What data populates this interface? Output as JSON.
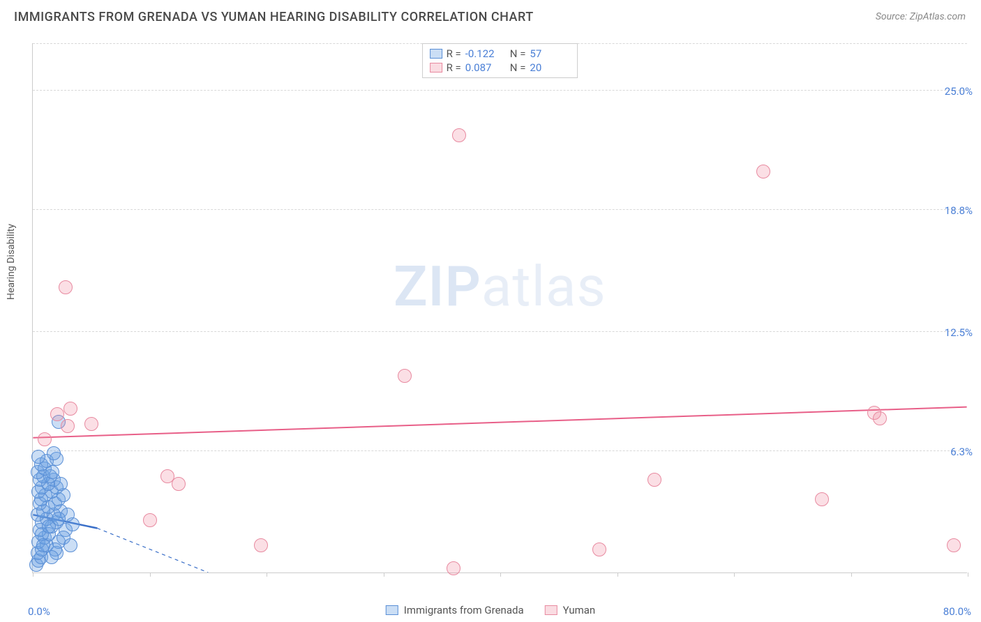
{
  "title": "IMMIGRANTS FROM GRENADA VS YUMAN HEARING DISABILITY CORRELATION CHART",
  "source": "Source: ZipAtlas.com",
  "ylabel": "Hearing Disability",
  "watermark_part1": "ZIP",
  "watermark_part2": "atlas",
  "chart": {
    "type": "scatter",
    "xlim": [
      0,
      80
    ],
    "ylim": [
      0,
      27.5
    ],
    "x_min_label": "0.0%",
    "x_max_label": "80.0%",
    "y_ticks": [
      6.3,
      12.5,
      18.8,
      25.0
    ],
    "y_tick_labels": [
      "6.3%",
      "12.5%",
      "18.8%",
      "25.0%"
    ],
    "x_tick_positions": [
      0,
      10,
      20,
      30,
      40,
      50,
      60,
      70,
      80
    ],
    "plot_bg": "#ffffff",
    "grid_color": "#d8d8d8",
    "axis_color": "#cccccc",
    "label_color": "#4a7fd6",
    "title_color": "#4a4a4a",
    "marker_radius": 10,
    "series": [
      {
        "name": "Immigrants from Grenada",
        "class": "blue",
        "fill": "rgba(105,160,225,0.35)",
        "stroke": "#5a8fd6",
        "R": "-0.122",
        "N": "57",
        "trend": {
          "x1": 0,
          "y1": 3.0,
          "x2": 5.5,
          "y2": 2.3,
          "dash_to_x": 15,
          "dash_to_y": 0,
          "color": "#3a6fc8",
          "width": 2.5
        },
        "points": [
          [
            0.3,
            0.4
          ],
          [
            0.5,
            0.6
          ],
          [
            0.7,
            0.8
          ],
          [
            0.4,
            1.0
          ],
          [
            0.8,
            1.2
          ],
          [
            1.2,
            1.4
          ],
          [
            0.5,
            1.6
          ],
          [
            1.0,
            1.8
          ],
          [
            1.4,
            2.0
          ],
          [
            0.6,
            2.2
          ],
          [
            1.6,
            2.4
          ],
          [
            0.8,
            2.6
          ],
          [
            2.0,
            2.6
          ],
          [
            1.2,
            2.8
          ],
          [
            0.4,
            3.0
          ],
          [
            1.8,
            3.0
          ],
          [
            0.9,
            3.2
          ],
          [
            2.4,
            3.2
          ],
          [
            1.3,
            3.4
          ],
          [
            0.6,
            3.6
          ],
          [
            1.9,
            3.6
          ],
          [
            2.8,
            2.2
          ],
          [
            3.4,
            2.5
          ],
          [
            0.7,
            3.8
          ],
          [
            2.2,
            3.8
          ],
          [
            1.1,
            4.0
          ],
          [
            0.5,
            4.2
          ],
          [
            1.6,
            4.2
          ],
          [
            2.6,
            4.0
          ],
          [
            0.8,
            4.4
          ],
          [
            2.0,
            4.4
          ],
          [
            1.3,
            4.6
          ],
          [
            0.6,
            4.8
          ],
          [
            1.8,
            4.8
          ],
          [
            2.4,
            4.6
          ],
          [
            0.9,
            5.0
          ],
          [
            1.5,
            5.0
          ],
          [
            0.4,
            5.2
          ],
          [
            2.0,
            1.0
          ],
          [
            1.0,
            5.4
          ],
          [
            1.7,
            5.2
          ],
          [
            0.7,
            5.6
          ],
          [
            2.2,
            1.6
          ],
          [
            1.2,
            5.8
          ],
          [
            0.5,
            6.0
          ],
          [
            1.9,
            1.2
          ],
          [
            2.0,
            5.9
          ],
          [
            0.8,
            2.0
          ],
          [
            1.4,
            2.4
          ],
          [
            2.6,
            1.8
          ],
          [
            3.0,
            3.0
          ],
          [
            1.6,
            0.8
          ],
          [
            0.9,
            1.4
          ],
          [
            2.2,
            2.8
          ],
          [
            1.8,
            6.2
          ],
          [
            3.2,
            1.4
          ],
          [
            2.2,
            7.8
          ]
        ]
      },
      {
        "name": "Yuman",
        "class": "pink",
        "fill": "rgba(240,140,160,0.28)",
        "stroke": "#e88aa0",
        "R": "0.087",
        "N": "20",
        "trend": {
          "x1": 0,
          "y1": 7.0,
          "x2": 80,
          "y2": 8.6,
          "color": "#e85f88",
          "width": 2
        },
        "points": [
          [
            1.0,
            6.9
          ],
          [
            2.1,
            8.2
          ],
          [
            3.2,
            8.5
          ],
          [
            3.0,
            7.6
          ],
          [
            2.8,
            14.8
          ],
          [
            5.0,
            7.7
          ],
          [
            10.0,
            2.7
          ],
          [
            11.5,
            5.0
          ],
          [
            12.5,
            4.6
          ],
          [
            19.5,
            1.4
          ],
          [
            31.8,
            10.2
          ],
          [
            36.5,
            22.7
          ],
          [
            36.0,
            0.2
          ],
          [
            48.5,
            1.2
          ],
          [
            53.2,
            4.8
          ],
          [
            62.5,
            20.8
          ],
          [
            67.5,
            3.8
          ],
          [
            72.0,
            8.3
          ],
          [
            72.5,
            8.0
          ],
          [
            78.8,
            1.4
          ]
        ]
      }
    ]
  },
  "legend_top": [
    {
      "class": "blue",
      "R_label": "R =",
      "R": "-0.122",
      "N_label": "N =",
      "N": "57"
    },
    {
      "class": "pink",
      "R_label": "R =",
      "R": "0.087",
      "N_label": "N =",
      "N": "20"
    }
  ],
  "legend_bottom": [
    {
      "class": "blue",
      "label": "Immigrants from Grenada"
    },
    {
      "class": "pink",
      "label": "Yuman"
    }
  ]
}
